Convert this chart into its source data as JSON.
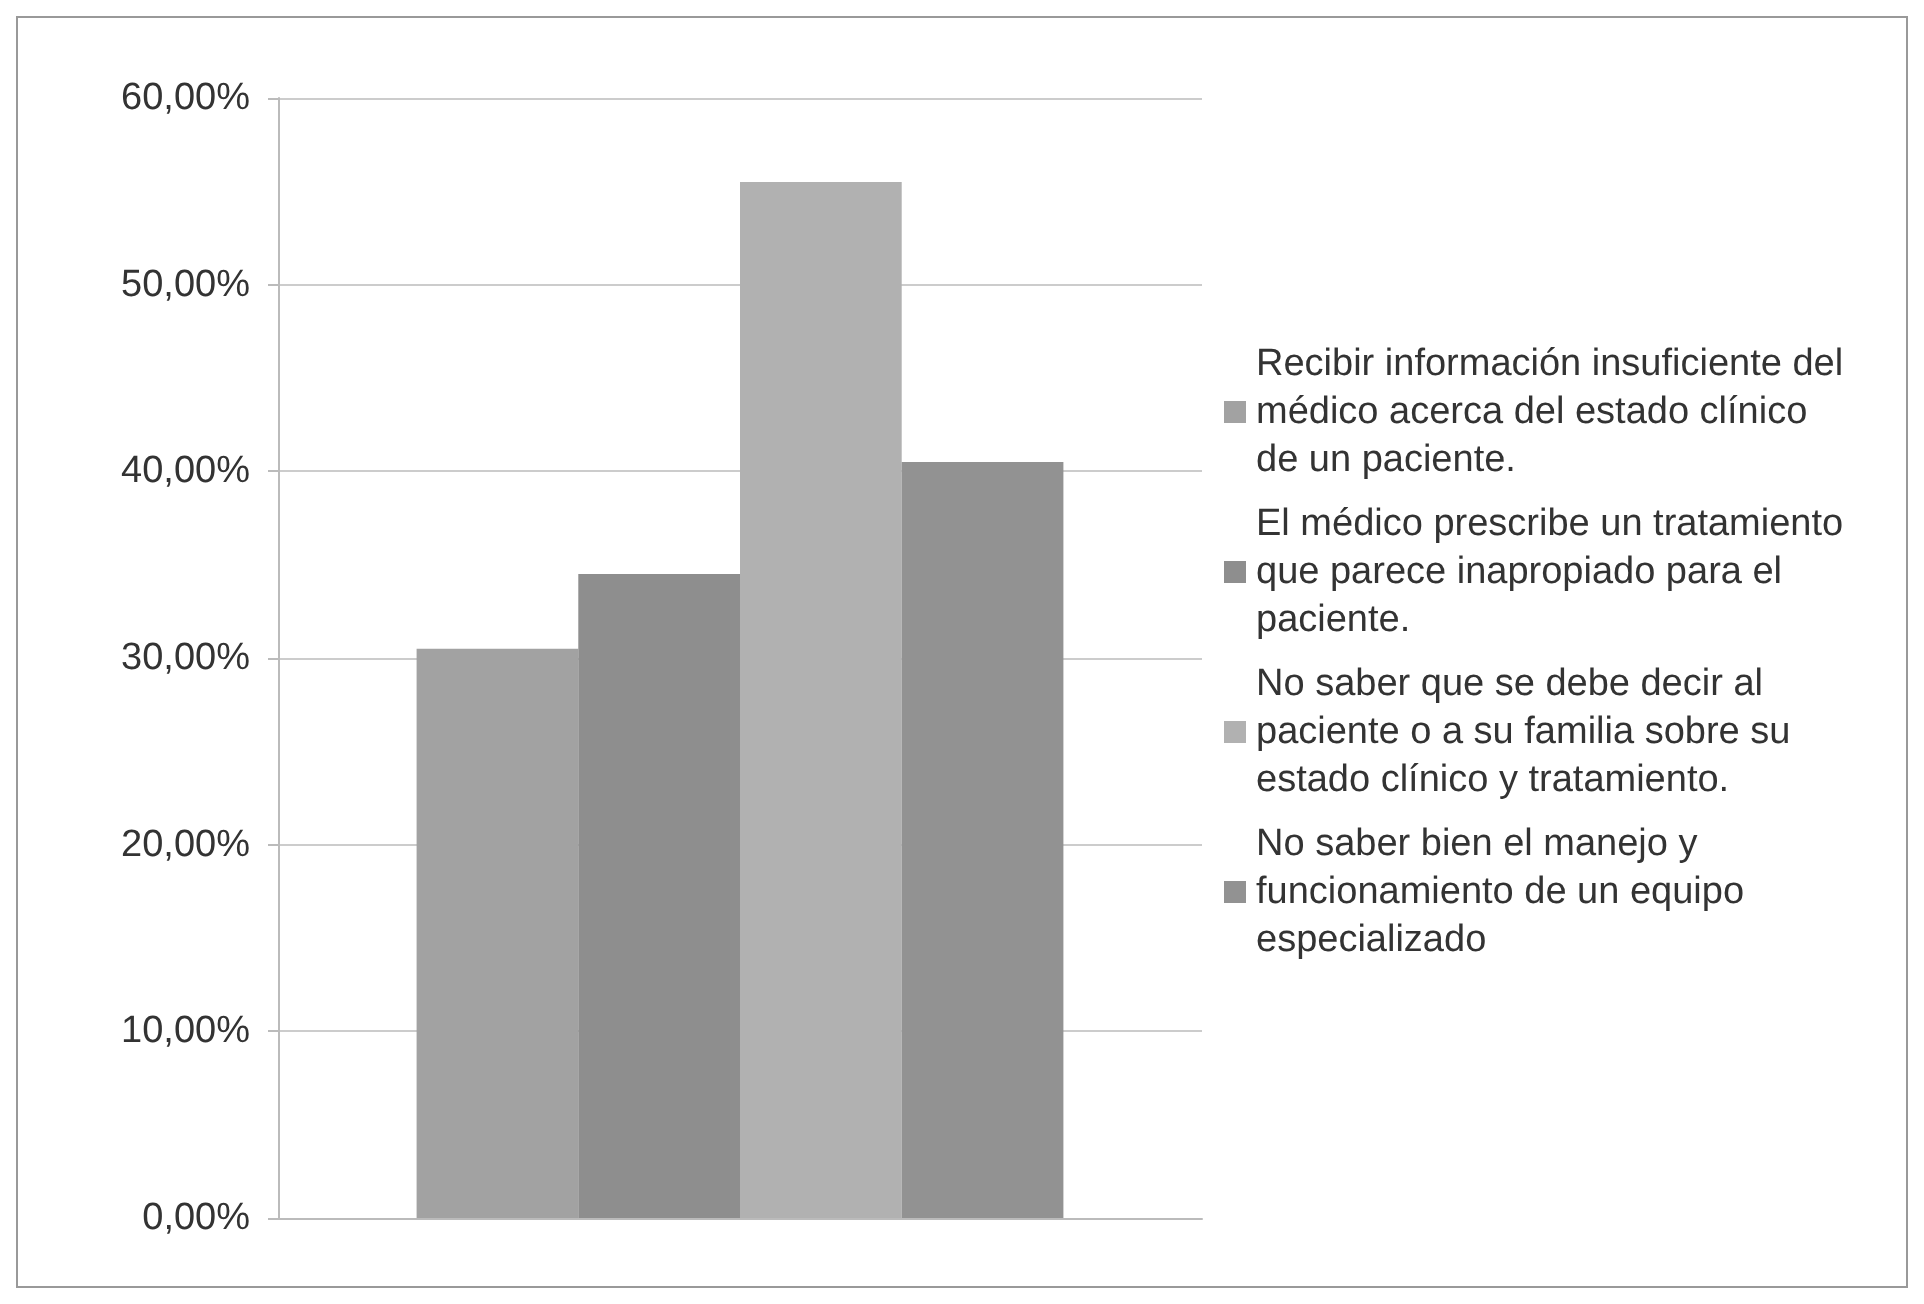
{
  "chart_data": {
    "type": "bar",
    "categories": [
      null
    ],
    "series": [
      {
        "name": "Recibir información insuficiente del médico acerca del estado clínico de un paciente.",
        "color": "#a2a2a2",
        "values": [
          30.5
        ]
      },
      {
        "name": "El médico prescribe un tratamiento que parece inapropiado para el paciente.",
        "color": "#8e8e8e",
        "values": [
          34.5
        ]
      },
      {
        "name": "No saber que se debe decir al paciente o a su familia sobre su estado clínico y tratamiento.",
        "color": "#b1b1b1",
        "values": [
          55.5
        ]
      },
      {
        "name": "No saber bien el manejo y funcionamiento de un equipo especializado",
        "color": "#929292",
        "values": [
          40.5
        ]
      }
    ],
    "ylim": [
      0,
      60
    ],
    "yticks": [
      {
        "value": 0,
        "label": "0,00%"
      },
      {
        "value": 10,
        "label": "10,00%"
      },
      {
        "value": 20,
        "label": "20,00%"
      },
      {
        "value": 30,
        "label": "30,00%"
      },
      {
        "value": 40,
        "label": "40,00%"
      },
      {
        "value": 50,
        "label": "50,00%"
      },
      {
        "value": 60,
        "label": "60,00%"
      }
    ],
    "grid": "y",
    "legend": "right"
  }
}
